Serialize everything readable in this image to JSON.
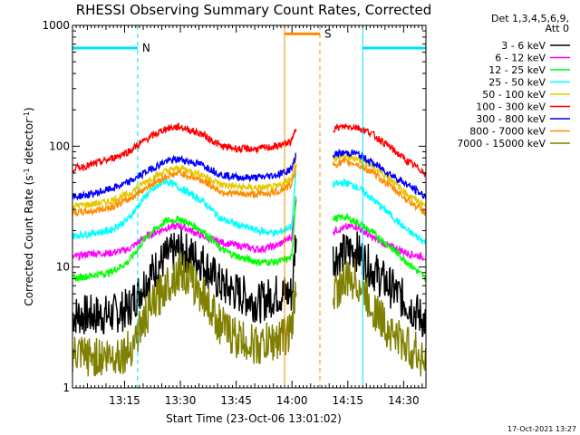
{
  "chart_data": {
    "type": "line",
    "title": "RHESSI Observing Summary Count Rates, Corrected",
    "xlabel": "Start Time (23-Oct-06 13:01:02)",
    "ylabel_main": "Corrected Count Rate (s",
    "ylabel_sup1": "-1",
    "ylabel_mid": " detector",
    "ylabel_sup2": "-1",
    "ylabel_end": ")",
    "yscale": "log",
    "ylim": [
      1,
      1000
    ],
    "xlim_minutes": [
      0,
      95
    ],
    "x_tick_labels": [
      "13:15",
      "13:30",
      "13:45",
      "14:00",
      "14:15",
      "14:30"
    ],
    "x_tick_values": [
      14,
      29,
      44,
      59,
      74,
      89
    ],
    "y_tick_labels": [
      "1",
      "10",
      "100",
      "1000"
    ],
    "y_tick_values": [
      1,
      10,
      100,
      1000
    ],
    "legend_header": [
      "Det 1,3,4,5,6,9,",
      "Att 0"
    ],
    "legend_position": "right",
    "data_gap_minutes": [
      63,
      70
    ],
    "flags": [
      {
        "label": "N",
        "color": "#00e0ff",
        "segments": [
          [
            0,
            17.5
          ],
          [
            78,
            95
          ]
        ],
        "level": 650
      },
      {
        "label": "S",
        "color": "#ff8c00",
        "segments": [
          [
            57,
            66.5
          ]
        ],
        "level": 850
      }
    ],
    "vlines": [
      {
        "x": 0,
        "color": "#00e0ff",
        "style": "solid"
      },
      {
        "x": 17.5,
        "color": "#00e0ff",
        "style": "dashed"
      },
      {
        "x": 57,
        "color": "#ff8c00",
        "style": "solid"
      },
      {
        "x": 66.5,
        "color": "#ff8c00",
        "style": "dashed"
      },
      {
        "x": 78,
        "color": "#00e0ff",
        "solid": true,
        "style": "solid"
      },
      {
        "x": 95,
        "color": "#00e0ff",
        "style": "dashed"
      }
    ],
    "series": [
      {
        "name": "3 - 6 keV",
        "color": "#000000",
        "x": [
          0,
          5,
          10,
          15,
          20,
          25,
          29,
          35,
          40,
          45,
          50,
          55,
          59,
          60,
          70,
          73,
          76,
          80,
          85,
          90,
          95
        ],
        "values": [
          4,
          4,
          4,
          4.5,
          8,
          12,
          14,
          11,
          7,
          6,
          5,
          6,
          6,
          18,
          12,
          13,
          14,
          10,
          7,
          5,
          3.5
        ]
      },
      {
        "name": "6 - 12 keV",
        "color": "#ff00ff",
        "x": [
          0,
          5,
          10,
          15,
          20,
          25,
          29,
          35,
          40,
          45,
          50,
          55,
          59,
          60,
          70,
          73,
          76,
          80,
          85,
          90,
          95
        ],
        "values": [
          12,
          13,
          13,
          14,
          18,
          21,
          22,
          18,
          16,
          15,
          14,
          15,
          18,
          35,
          20,
          21,
          22,
          18,
          15,
          13,
          12
        ]
      },
      {
        "name": "12 - 25 keV",
        "color": "#00ff00",
        "x": [
          0,
          5,
          10,
          15,
          20,
          25,
          29,
          35,
          40,
          45,
          50,
          55,
          59,
          60,
          70,
          73,
          76,
          80,
          85,
          90,
          95
        ],
        "values": [
          8,
          8.5,
          9,
          11,
          18,
          24,
          25,
          20,
          14,
          12,
          11,
          11,
          12,
          40,
          25,
          26,
          24,
          20,
          15,
          11,
          8
        ]
      },
      {
        "name": "25 - 50 keV",
        "color": "#00ffff",
        "x": [
          0,
          5,
          10,
          15,
          20,
          25,
          29,
          35,
          40,
          45,
          50,
          55,
          59,
          60,
          70,
          73,
          76,
          80,
          85,
          90,
          95
        ],
        "values": [
          18,
          19,
          20,
          25,
          40,
          52,
          45,
          35,
          25,
          22,
          20,
          19,
          22,
          60,
          48,
          50,
          47,
          38,
          28,
          20,
          16
        ]
      },
      {
        "name": "50 - 100 keV",
        "color": "#e6c800",
        "x": [
          0,
          5,
          10,
          15,
          20,
          25,
          29,
          35,
          40,
          45,
          50,
          55,
          59,
          60,
          70,
          73,
          76,
          80,
          85,
          90,
          95
        ],
        "values": [
          32,
          33,
          35,
          40,
          52,
          62,
          66,
          58,
          48,
          46,
          45,
          46,
          55,
          80,
          78,
          82,
          80,
          70,
          55,
          40,
          32
        ]
      },
      {
        "name": "100 - 300 keV",
        "color": "#ff0000",
        "x": [
          0,
          5,
          10,
          15,
          20,
          25,
          29,
          35,
          40,
          45,
          50,
          55,
          59,
          60,
          70,
          73,
          76,
          80,
          85,
          90,
          95
        ],
        "values": [
          65,
          70,
          78,
          90,
          115,
          140,
          145,
          125,
          100,
          95,
          95,
          100,
          110,
          140,
          140,
          145,
          145,
          130,
          100,
          75,
          60
        ]
      },
      {
        "name": "300 - 800 keV",
        "color": "#0000ff",
        "x": [
          0,
          5,
          10,
          15,
          20,
          25,
          29,
          35,
          40,
          45,
          50,
          55,
          59,
          60,
          70,
          73,
          76,
          80,
          85,
          90,
          95
        ],
        "values": [
          38,
          40,
          44,
          50,
          62,
          75,
          78,
          70,
          58,
          55,
          55,
          58,
          65,
          85,
          85,
          88,
          88,
          75,
          60,
          48,
          38
        ]
      },
      {
        "name": "800 - 7000 keV",
        "color": "#ff8c00",
        "x": [
          0,
          5,
          10,
          15,
          20,
          25,
          29,
          35,
          40,
          45,
          50,
          55,
          59,
          60,
          70,
          73,
          76,
          80,
          85,
          90,
          95
        ],
        "values": [
          28,
          29,
          31,
          36,
          46,
          56,
          60,
          52,
          42,
          40,
          40,
          42,
          48,
          68,
          70,
          74,
          72,
          62,
          48,
          36,
          28
        ]
      },
      {
        "name": "7000 - 15000 keV",
        "color": "#808000",
        "x": [
          0,
          5,
          10,
          15,
          20,
          25,
          29,
          35,
          40,
          45,
          50,
          55,
          59,
          60,
          70,
          73,
          76,
          80,
          85,
          90,
          95
        ],
        "values": [
          1.8,
          1.8,
          1.8,
          2,
          4,
          7,
          9.5,
          6,
          3.2,
          2.5,
          2.2,
          2.5,
          3,
          7,
          6,
          7.5,
          8,
          5,
          3,
          2.2,
          1.7
        ]
      }
    ]
  },
  "footer": {
    "timestamp": "17-Oct-2021 13:27"
  }
}
